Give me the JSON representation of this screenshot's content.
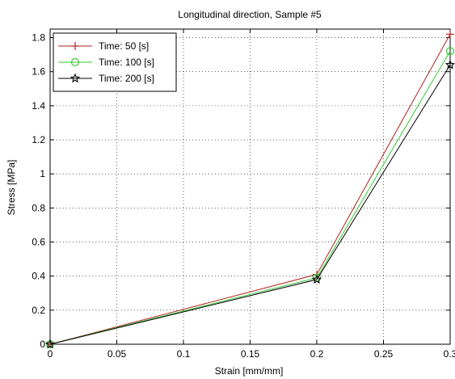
{
  "chart_data": {
    "type": "line",
    "title": "Longitudinal direction, Sample #5",
    "xlabel": "Strain [mm/mm]",
    "ylabel": "Stress  [MPa]",
    "xlim": [
      0,
      0.3
    ],
    "ylim": [
      0,
      1.85
    ],
    "x_ticks": [
      0,
      0.05,
      0.1,
      0.15,
      0.2,
      0.25,
      0.3
    ],
    "x_tick_labels": [
      "0",
      "0.05",
      "0.1",
      "0.15",
      "0.2",
      "0.25",
      "0.3"
    ],
    "y_ticks": [
      0,
      0.2,
      0.4,
      0.6,
      0.8,
      1.0,
      1.2,
      1.4,
      1.6,
      1.8
    ],
    "y_tick_labels": [
      "0",
      "0.2",
      "0.4",
      "0.6",
      "0.8",
      "1",
      "1.2",
      "1.4",
      "1.6",
      "1.8"
    ],
    "grid": true,
    "legend_position": "top-left",
    "x": [
      0,
      0.2,
      0.3
    ],
    "series": [
      {
        "name": "Time: 50 [s]",
        "values": [
          0,
          0.41,
          1.82
        ],
        "color": "#b22222",
        "marker": "plus"
      },
      {
        "name": "Time: 100 [s]",
        "values": [
          0,
          0.39,
          1.72
        ],
        "color": "#33cc33",
        "marker": "circle"
      },
      {
        "name": "Time: 200 [s]",
        "values": [
          0,
          0.38,
          1.64
        ],
        "color": "#000000",
        "marker": "star"
      }
    ]
  }
}
